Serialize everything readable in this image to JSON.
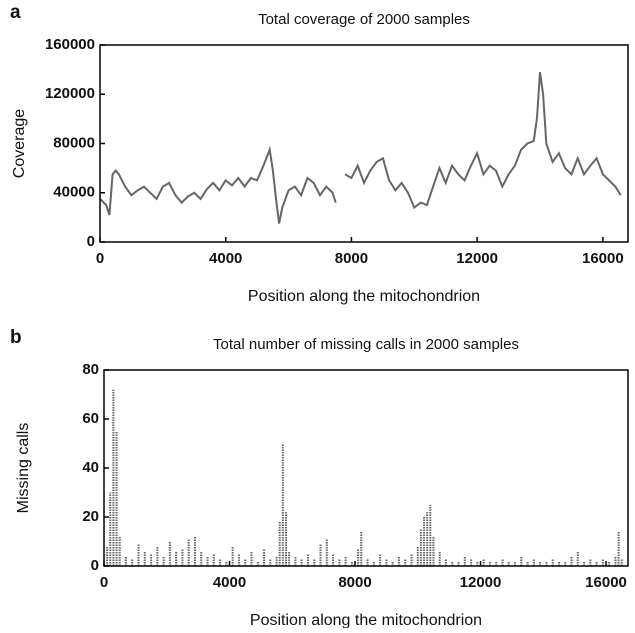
{
  "chart_data": [
    {
      "type": "line",
      "panel": "a",
      "title": "Total coverage of 2000 samples",
      "xlabel": "Position along the mitochondrion",
      "ylabel": "Coverage",
      "color": "#666666",
      "x": [
        0,
        200,
        300,
        400,
        500,
        600,
        800,
        1000,
        1200,
        1400,
        1600,
        1800,
        2000,
        2200,
        2400,
        2600,
        2800,
        3000,
        3200,
        3400,
        3600,
        3800,
        4000,
        4200,
        4400,
        4600,
        4800,
        5000,
        5200,
        5400,
        5500,
        5600,
        5700,
        5800,
        6000,
        6200,
        6400,
        6600,
        6800,
        7000,
        7200,
        7400,
        7500,
        7600,
        7800,
        8000,
        8200,
        8400,
        8600,
        8800,
        9000,
        9200,
        9400,
        9600,
        9800,
        10000,
        10200,
        10400,
        10600,
        10800,
        11000,
        11200,
        11400,
        11600,
        11800,
        12000,
        12200,
        12400,
        12600,
        12800,
        13000,
        13200,
        13400,
        13600,
        13800,
        13900,
        14000,
        14100,
        14200,
        14400,
        14600,
        14800,
        15000,
        15200,
        15400,
        15600,
        15800,
        16000,
        16200,
        16400,
        16569
      ],
      "values": [
        35000,
        30000,
        22000,
        55000,
        58000,
        55000,
        45000,
        38000,
        42000,
        45000,
        40000,
        35000,
        45000,
        48000,
        38000,
        32000,
        37000,
        40000,
        35000,
        43000,
        48000,
        42000,
        50000,
        46000,
        52000,
        45000,
        52000,
        50000,
        62000,
        75000,
        58000,
        35000,
        15000,
        28000,
        42000,
        45000,
        38000,
        52000,
        48000,
        38000,
        45000,
        40000,
        32000,
        null,
        55000,
        52000,
        62000,
        48000,
        58000,
        65000,
        68000,
        50000,
        42000,
        48000,
        40000,
        28000,
        32000,
        30000,
        45000,
        60000,
        48000,
        62000,
        55000,
        50000,
        62000,
        72000,
        55000,
        62000,
        58000,
        45000,
        55000,
        62000,
        75000,
        80000,
        82000,
        100000,
        138000,
        120000,
        80000,
        65000,
        72000,
        60000,
        55000,
        68000,
        55000,
        62000,
        68000,
        55000,
        50000,
        45000,
        38000
      ],
      "xlim": [
        0,
        16800
      ],
      "ylim": [
        0,
        160000
      ],
      "xticks": [
        0,
        4000,
        8000,
        12000,
        16000
      ],
      "yticks": [
        0,
        40000,
        80000,
        120000,
        160000
      ]
    },
    {
      "type": "spike",
      "panel": "b",
      "title": "Total number of missing calls in 2000 samples",
      "xlabel": "Position along the mitochondrion",
      "ylabel": "Missing calls",
      "color": "#666666",
      "x": [
        100,
        200,
        300,
        400,
        500,
        700,
        900,
        1100,
        1300,
        1500,
        1700,
        1900,
        2100,
        2300,
        2500,
        2700,
        2900,
        3100,
        3300,
        3500,
        3700,
        3900,
        4100,
        4300,
        4500,
        4700,
        4900,
        5100,
        5300,
        5500,
        5600,
        5700,
        5800,
        5900,
        6100,
        6300,
        6500,
        6700,
        6900,
        7100,
        7300,
        7500,
        7700,
        7900,
        8100,
        8200,
        8400,
        8600,
        8800,
        9000,
        9200,
        9400,
        9600,
        9800,
        10000,
        10100,
        10200,
        10300,
        10400,
        10500,
        10700,
        10900,
        11100,
        11300,
        11500,
        11700,
        11900,
        12100,
        12300,
        12500,
        12700,
        12900,
        13100,
        13300,
        13500,
        13700,
        13900,
        14100,
        14300,
        14500,
        14700,
        14900,
        15100,
        15300,
        15500,
        15700,
        15900,
        16100,
        16300,
        16400,
        16500
      ],
      "values": [
        8,
        30,
        72,
        55,
        12,
        4,
        3,
        9,
        6,
        5,
        8,
        4,
        10,
        6,
        7,
        11,
        12,
        6,
        4,
        5,
        3,
        2,
        8,
        5,
        3,
        6,
        2,
        7,
        3,
        4,
        18,
        50,
        22,
        6,
        4,
        3,
        5,
        3,
        9,
        11,
        5,
        3,
        4,
        2,
        7,
        14,
        3,
        2,
        5,
        3,
        2,
        4,
        3,
        5,
        8,
        15,
        20,
        22,
        25,
        12,
        6,
        3,
        2,
        2,
        4,
        3,
        2,
        3,
        2,
        2,
        3,
        2,
        2,
        4,
        2,
        3,
        2,
        2,
        3,
        2,
        2,
        4,
        6,
        2,
        3,
        2,
        3,
        2,
        4,
        14,
        3
      ],
      "xlim": [
        0,
        16700
      ],
      "ylim": [
        0,
        80
      ],
      "xticks": [
        0,
        4000,
        8000,
        12000,
        16000
      ],
      "yticks": [
        0,
        20,
        40,
        60,
        80
      ]
    }
  ]
}
